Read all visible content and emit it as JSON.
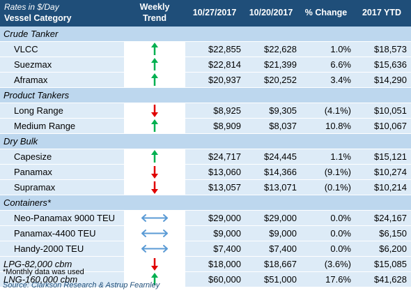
{
  "header": {
    "rates_label": "Rates in $/Day",
    "category_label": "Vessel Category",
    "trend_label_1": "Weekly",
    "trend_label_2": "Trend",
    "col_date1": "10/27/2017",
    "col_date2": "10/20/2017",
    "col_change": "% Change",
    "col_ytd": "2017 YTD"
  },
  "colors": {
    "header_bg": "#1f4e79",
    "section_bg": "#bdd7ee",
    "row_bg": "#ddebf7",
    "up": "#00b050",
    "down": "#e00000",
    "flat": "#5b9bd5"
  },
  "rows": [
    {
      "type": "section",
      "label": "Crude Tanker"
    },
    {
      "type": "data",
      "label": "VLCC",
      "trend": "up",
      "v1": "$22,855",
      "v2": "$22,628",
      "chg": "1.0%",
      "ytd": "$18,573"
    },
    {
      "type": "data",
      "label": "Suezmax",
      "trend": "up",
      "v1": "$22,814",
      "v2": "$21,399",
      "chg": "6.6%",
      "ytd": "$15,636"
    },
    {
      "type": "data",
      "label": "Aframax",
      "trend": "up",
      "v1": "$20,937",
      "v2": "$20,252",
      "chg": "3.4%",
      "ytd": "$14,290"
    },
    {
      "type": "section",
      "label": "Product Tankers"
    },
    {
      "type": "data",
      "label": "Long Range",
      "trend": "down",
      "v1": "$8,925",
      "v2": "$9,305",
      "chg": "(4.1%)",
      "ytd": "$10,051"
    },
    {
      "type": "data",
      "label": "Medium Range",
      "trend": "up",
      "v1": "$8,909",
      "v2": "$8,037",
      "chg": "10.8%",
      "ytd": "$10,067"
    },
    {
      "type": "section",
      "label": "Dry Bulk"
    },
    {
      "type": "data",
      "label": "Capesize",
      "trend": "up",
      "v1": "$24,717",
      "v2": "$24,445",
      "chg": "1.1%",
      "ytd": "$15,121"
    },
    {
      "type": "data",
      "label": "Panamax",
      "trend": "down",
      "v1": "$13,060",
      "v2": "$14,366",
      "chg": "(9.1%)",
      "ytd": "$10,274"
    },
    {
      "type": "data",
      "label": "Supramax",
      "trend": "down",
      "v1": "$13,057",
      "v2": "$13,071",
      "chg": "(0.1%)",
      "ytd": "$10,214"
    },
    {
      "type": "section",
      "label": "Containers*"
    },
    {
      "type": "data",
      "label": "Neo-Panamax 9000 TEU",
      "trend": "flat",
      "v1": "$29,000",
      "v2": "$29,000",
      "chg": "0.0%",
      "ytd": "$24,167"
    },
    {
      "type": "data",
      "label": "Panamax-4400 TEU",
      "trend": "flat",
      "v1": "$9,000",
      "v2": "$9,000",
      "chg": "0.0%",
      "ytd": "$6,150"
    },
    {
      "type": "data",
      "label": "Handy-2000 TEU",
      "trend": "flat",
      "v1": "$7,400",
      "v2": "$7,400",
      "chg": "0.0%",
      "ytd": "$6,200"
    },
    {
      "type": "data",
      "italic": true,
      "label": "LPG-82,000 cbm",
      "trend": "down",
      "v1": "$18,000",
      "v2": "$18,667",
      "chg": "(3.6%)",
      "ytd": "$15,085"
    },
    {
      "type": "data",
      "italic": true,
      "label": "LNG-160,000 cbm",
      "trend": "up",
      "v1": "$60,000",
      "v2": "$51,000",
      "chg": "17.6%",
      "ytd": "$41,628"
    }
  ],
  "footnotes": {
    "note": "*Monthly data was used",
    "source": "Source: Clarkson Research & Astrup Fearnley"
  }
}
